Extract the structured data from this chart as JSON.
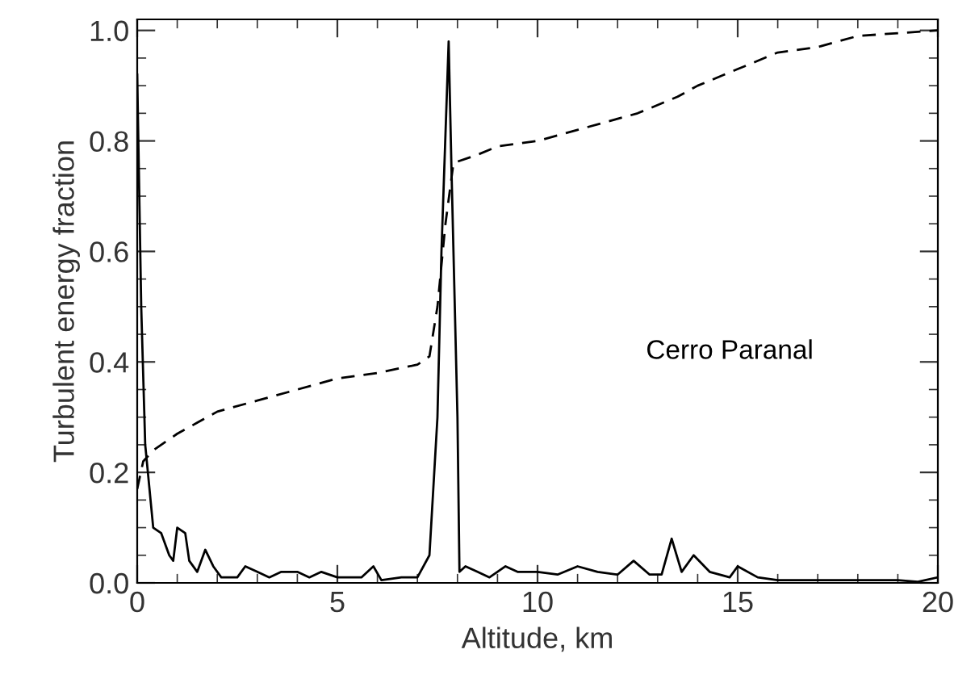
{
  "chart_data": {
    "type": "line",
    "xlabel": "Altitude, km",
    "ylabel": "Turbulent energy fraction",
    "annotations": [
      "Cerro Paranal"
    ],
    "xlim": [
      0,
      20
    ],
    "ylim": [
      0,
      1.02
    ],
    "xticks": [
      0,
      5,
      10,
      15,
      20
    ],
    "yticks": [
      {
        "value": 0,
        "label": "0.0"
      },
      {
        "value": 0.2,
        "label": "0.2"
      },
      {
        "value": 0.4,
        "label": "0.4"
      },
      {
        "value": 0.6,
        "label": "0.6"
      },
      {
        "value": 0.8,
        "label": "0.8"
      },
      {
        "value": 1.0,
        "label": "1.0"
      }
    ],
    "grid": false,
    "legend": false,
    "marker": "none",
    "series": [
      {
        "color": "#000000",
        "line_style": "solid",
        "x": [
          0,
          0.1,
          0.2,
          0.4,
          0.6,
          0.8,
          0.9,
          1.0,
          1.2,
          1.3,
          1.5,
          1.7,
          1.9,
          2.1,
          2.5,
          2.7,
          3.0,
          3.3,
          3.6,
          4.0,
          4.3,
          4.6,
          5.0,
          5.6,
          5.9,
          6.1,
          6.6,
          7.0,
          7.3,
          7.5,
          7.6,
          7.78,
          7.85,
          8.0,
          8.05,
          8.2,
          8.5,
          8.8,
          9.2,
          9.5,
          10,
          10.5,
          11,
          11.5,
          12,
          12.4,
          12.8,
          13.1,
          13.35,
          13.6,
          13.9,
          14.3,
          14.8,
          15.0,
          15.5,
          16,
          17,
          18,
          19,
          19.5,
          20
        ],
        "values": [
          0.92,
          0.5,
          0.25,
          0.1,
          0.09,
          0.05,
          0.04,
          0.1,
          0.09,
          0.04,
          0.02,
          0.06,
          0.03,
          0.01,
          0.01,
          0.03,
          0.02,
          0.01,
          0.02,
          0.02,
          0.01,
          0.02,
          0.01,
          0.01,
          0.03,
          0.005,
          0.01,
          0.01,
          0.05,
          0.3,
          0.6,
          0.98,
          0.75,
          0.3,
          0.02,
          0.03,
          0.02,
          0.01,
          0.03,
          0.02,
          0.02,
          0.015,
          0.03,
          0.02,
          0.015,
          0.04,
          0.015,
          0.015,
          0.08,
          0.02,
          0.05,
          0.02,
          0.01,
          0.03,
          0.01,
          0.005,
          0.005,
          0.005,
          0.005,
          0.002,
          0.01
        ]
      },
      {
        "color": "#000000",
        "line_style": "dashed",
        "x": [
          0,
          0.15,
          0.4,
          1,
          1.5,
          2,
          3,
          4,
          5,
          6,
          7,
          7.3,
          7.5,
          7.7,
          7.9,
          8.5,
          9,
          10,
          11,
          12,
          12.5,
          13.5,
          14,
          15,
          16,
          17,
          18,
          19,
          20
        ],
        "values": [
          0.17,
          0.22,
          0.24,
          0.27,
          0.29,
          0.31,
          0.33,
          0.35,
          0.37,
          0.38,
          0.395,
          0.41,
          0.5,
          0.65,
          0.76,
          0.775,
          0.79,
          0.8,
          0.82,
          0.84,
          0.85,
          0.88,
          0.9,
          0.93,
          0.96,
          0.97,
          0.99,
          0.995,
          1.0
        ]
      }
    ]
  }
}
